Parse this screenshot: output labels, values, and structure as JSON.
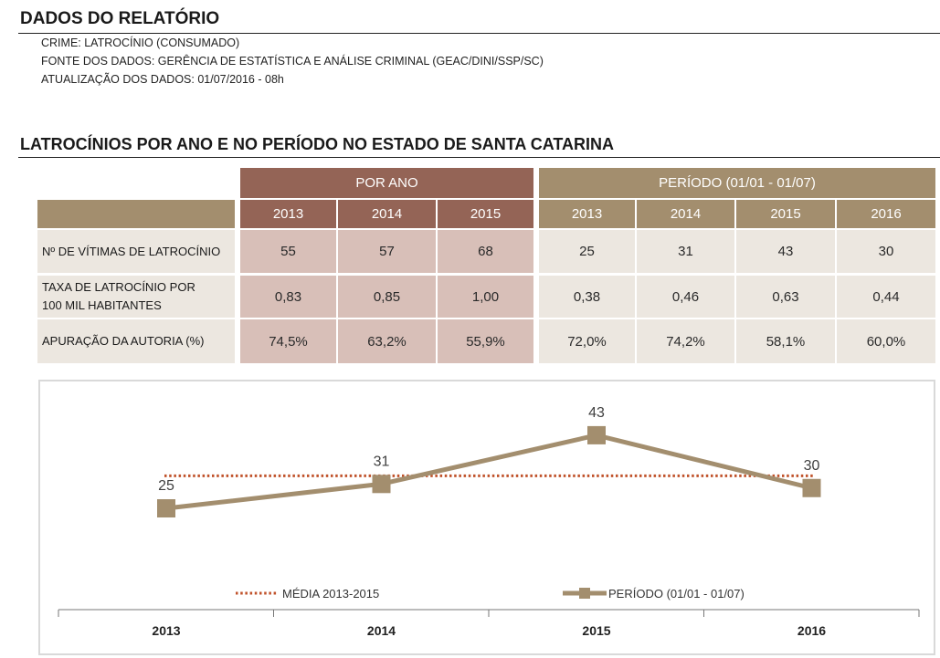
{
  "report": {
    "title": "DADOS DO RELATÓRIO",
    "lines": [
      "CRIME: LATROCÍNIO (CONSUMADO)",
      "FONTE DOS DADOS: GERÊNCIA DE ESTATÍSTICA E ANÁLISE CRIMINAL (GEAC/DINI/SSP/SC)",
      "ATUALIZAÇÃO DOS DADOS: 01/07/2016 - 08h"
    ]
  },
  "section": {
    "title": "LATROCÍNIOS POR ANO E NO PERÍODO NO ESTADO DE SANTA CATARINA"
  },
  "table": {
    "group_por_ano": "POR ANO",
    "group_periodo": "PERÍODO (01/01 - 01/07)",
    "por_ano_years": [
      "2013",
      "2014",
      "2015"
    ],
    "periodo_years": [
      "2013",
      "2014",
      "2015",
      "2016"
    ],
    "rows": [
      {
        "label": "Nº DE VÍTIMAS DE LATROCÍNIO",
        "por_ano": [
          "55",
          "57",
          "68"
        ],
        "periodo": [
          "25",
          "31",
          "43",
          "30"
        ]
      },
      {
        "label": "TAXA DE LATROCÍNIO POR 100 MIL HABITANTES",
        "por_ano": [
          "0,83",
          "0,85",
          "1,00"
        ],
        "periodo": [
          "0,38",
          "0,46",
          "0,63",
          "0,44"
        ]
      },
      {
        "label": "APURAÇÃO DA AUTORIA (%)",
        "por_ano": [
          "74,5%",
          "63,2%",
          "55,9%"
        ],
        "periodo": [
          "72,0%",
          "74,2%",
          "58,1%",
          "60,0%"
        ]
      }
    ],
    "colors": {
      "por_ano_header": "#946456",
      "periodo_header": "#a38e6e",
      "por_ano_body": "#d8bfb8",
      "periodo_body": "#ece7e0"
    }
  },
  "chart_data": {
    "type": "line",
    "title": "",
    "xlabel": "",
    "ylabel": "",
    "categories": [
      "2013",
      "2014",
      "2015",
      "2016"
    ],
    "series": [
      {
        "name": "MÉDIA 2013-2015",
        "values": [
          33,
          33,
          33,
          33
        ],
        "style": "dotted",
        "color": "#c0522a",
        "data_labels": false
      },
      {
        "name": "PERÍODO (01/01 - 01/07)",
        "values": [
          25,
          31,
          43,
          30
        ],
        "style": "solid-square-markers",
        "color": "#a38e6e",
        "data_labels": true
      }
    ],
    "ylim": [
      0,
      50
    ],
    "y_axis_visible": false,
    "grid": false,
    "legend": "bottom"
  }
}
